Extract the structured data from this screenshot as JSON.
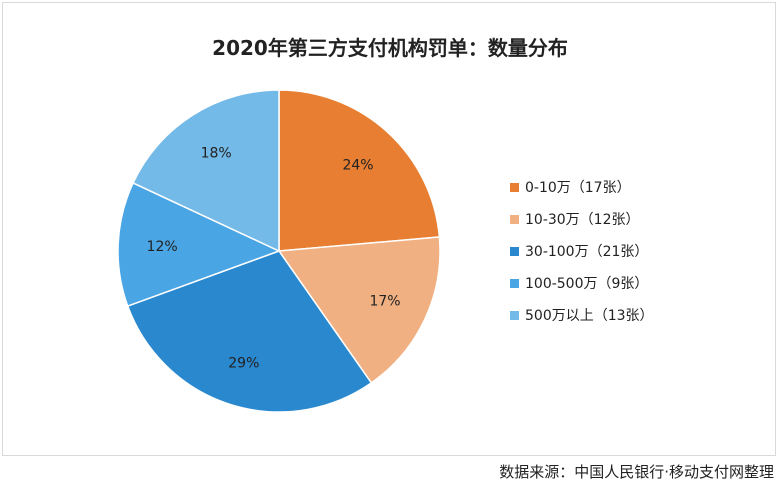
{
  "title": "2020年第三方支付机构罚单：数量分布",
  "source": "数据来源：中国人民银行·移动支付网整理",
  "chart_data": {
    "type": "pie",
    "title": "2020年第三方支付机构罚单：数量分布",
    "slices": [
      {
        "label": "0-10万（17张）",
        "category": "0-10万",
        "count": 17,
        "percent": 24,
        "percent_label": "24%",
        "color": "#E87E31"
      },
      {
        "label": "10-30万（12张）",
        "category": "10-30万",
        "count": 12,
        "percent": 17,
        "percent_label": "17%",
        "color": "#F0B082"
      },
      {
        "label": "30-100万（21张）",
        "category": "30-100万",
        "count": 21,
        "percent": 29,
        "percent_label": "29%",
        "color": "#2A88CE"
      },
      {
        "label": "100-500万（9张）",
        "category": "100-500万",
        "count": 9,
        "percent": 12,
        "percent_label": "12%",
        "color": "#4AA5E5"
      },
      {
        "label": "500万以上（13张）",
        "category": "500万以上",
        "count": 13,
        "percent": 18,
        "percent_label": "18%",
        "color": "#74BAE8"
      }
    ],
    "legend_position": "right"
  }
}
